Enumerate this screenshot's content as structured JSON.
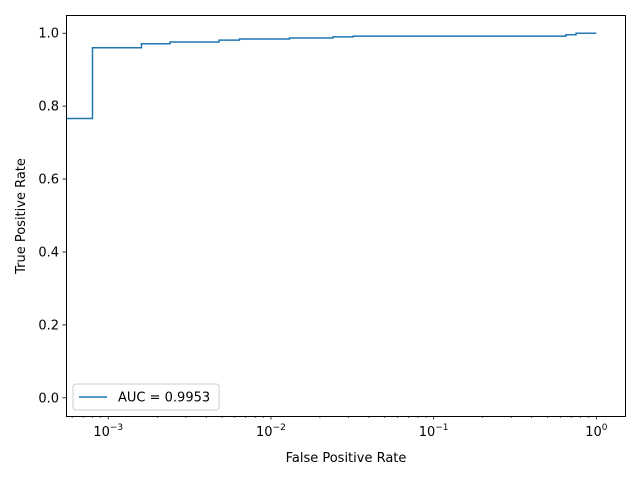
{
  "chart_data": {
    "type": "line",
    "title": "",
    "xlabel": "False Positive Rate",
    "ylabel": "True Positive Rate",
    "xscale": "log",
    "xlim": [
      0.00055,
      1.5
    ],
    "ylim": [
      -0.05,
      1.05
    ],
    "grid": false,
    "legend_position": "lower-left",
    "x_ticks": [
      {
        "value": 0.001,
        "base": "10",
        "exp": "−3"
      },
      {
        "value": 0.01,
        "base": "10",
        "exp": "−2"
      },
      {
        "value": 0.1,
        "base": "10",
        "exp": "−1"
      },
      {
        "value": 1,
        "label": "10",
        "exp": "0",
        "base": "10"
      }
    ],
    "y_ticks": [
      {
        "value": 0.0,
        "label": "0.0"
      },
      {
        "value": 0.2,
        "label": "0.2"
      },
      {
        "value": 0.4,
        "label": "0.4"
      },
      {
        "value": 0.6,
        "label": "0.6"
      },
      {
        "value": 0.8,
        "label": "0.8"
      },
      {
        "value": 1.0,
        "label": "1.0"
      }
    ],
    "series": [
      {
        "name": "AUC = 0.9953",
        "color": "#1f77b4",
        "step": "post",
        "points": [
          [
            0.00055,
            0.766
          ],
          [
            0.0008,
            0.766
          ],
          [
            0.0008,
            0.96
          ],
          [
            0.0016,
            0.96
          ],
          [
            0.0016,
            0.971
          ],
          [
            0.0024,
            0.971
          ],
          [
            0.0024,
            0.976
          ],
          [
            0.0048,
            0.976
          ],
          [
            0.0048,
            0.981
          ],
          [
            0.0064,
            0.981
          ],
          [
            0.0064,
            0.984
          ],
          [
            0.013,
            0.984
          ],
          [
            0.013,
            0.987
          ],
          [
            0.024,
            0.987
          ],
          [
            0.024,
            0.99
          ],
          [
            0.032,
            0.99
          ],
          [
            0.032,
            0.992
          ],
          [
            0.65,
            0.992
          ],
          [
            0.65,
            0.996
          ],
          [
            0.75,
            0.996
          ],
          [
            0.75,
            1.0
          ],
          [
            1.0,
            1.0
          ]
        ]
      }
    ]
  }
}
